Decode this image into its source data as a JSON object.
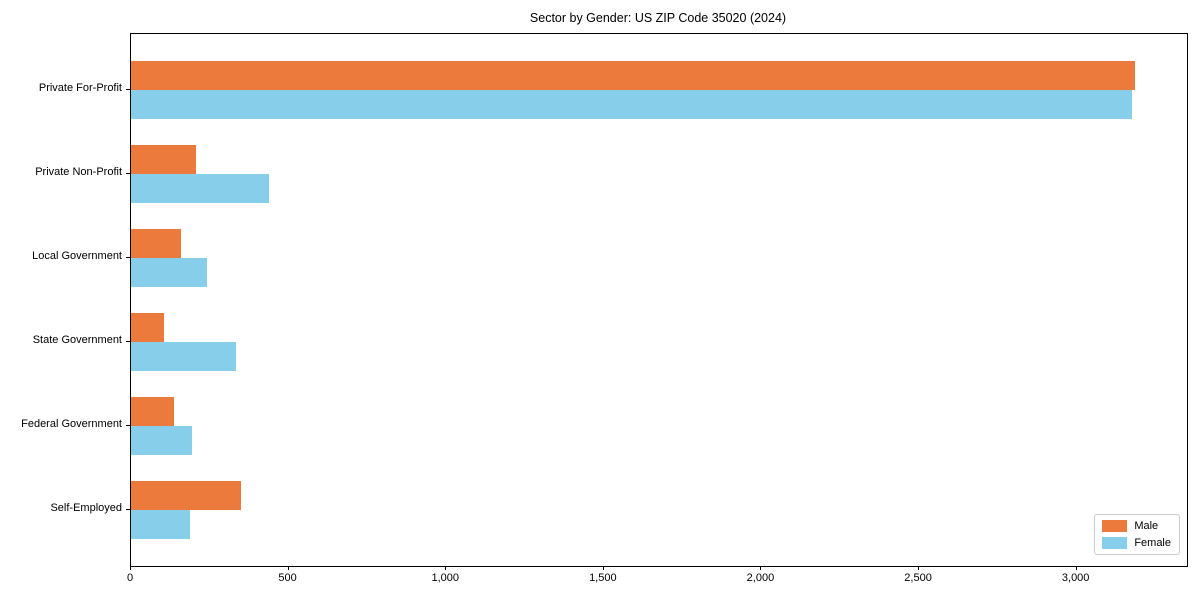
{
  "chart_data": {
    "type": "bar",
    "orientation": "horizontal",
    "title": "Sector by Gender: US ZIP Code 35020 (2024)",
    "categories": [
      "Private For-Profit",
      "Private Non-Profit",
      "Local Government",
      "State Government",
      "Federal Government",
      "Self-Employed"
    ],
    "series": [
      {
        "name": "Male",
        "color": "#EC7A3C",
        "values": [
          3185,
          205,
          160,
          105,
          137,
          350
        ]
      },
      {
        "name": "Female",
        "color": "#87CEEB",
        "values": [
          3175,
          438,
          240,
          333,
          194,
          188
        ]
      }
    ],
    "xlabel": "",
    "ylabel": "",
    "xlim": [
      0,
      3350
    ],
    "xticks": {
      "values": [
        0,
        500,
        1000,
        1500,
        2000,
        2500,
        3000
      ],
      "labels": [
        "0",
        "500",
        "1,000",
        "1,500",
        "2,000",
        "2,500",
        "3,000"
      ]
    },
    "grid": false,
    "legend_position": "lower-right",
    "colors": {
      "male": "#EC7A3C",
      "female": "#87CEEB",
      "axis": "#000000",
      "legend_border": "#cccccc",
      "background": "#ffffff"
    }
  }
}
